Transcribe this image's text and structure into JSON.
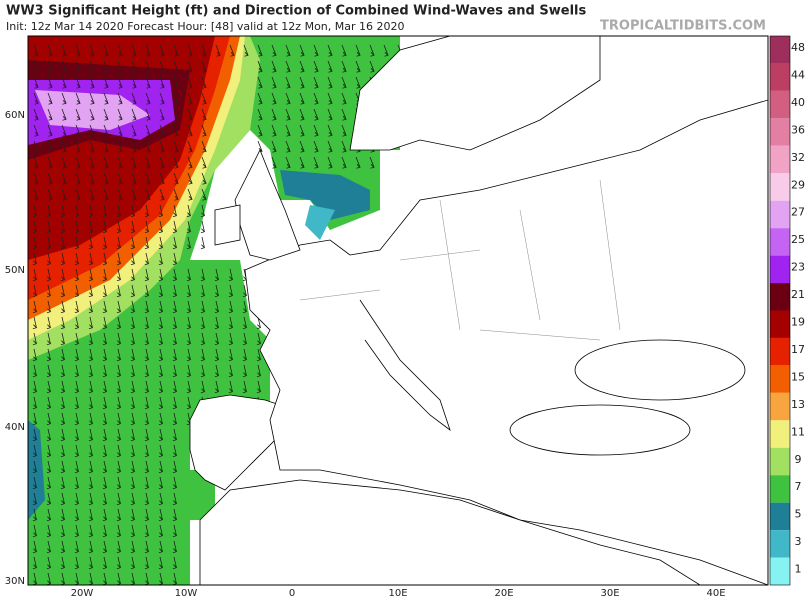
{
  "header": {
    "title": "WW3 Significant Height (ft) and Direction of Combined Wind-Waves and Swells",
    "subtitle": "Init: 12z Mar 14 2020   Forecast Hour: [48]   valid at 12z Mon, Mar 16 2020",
    "watermark": "TROPICALTIDBITS.COM"
  },
  "map": {
    "lat_labels": [
      "60N",
      "50N",
      "40N",
      "30N"
    ],
    "lon_labels": [
      "20W",
      "10W",
      "0",
      "10E",
      "20E",
      "30E",
      "40E"
    ]
  },
  "colorbar": {
    "labels": [
      "48",
      "44",
      "40",
      "36",
      "32",
      "29",
      "27",
      "25",
      "23",
      "21",
      "19",
      "17",
      "15",
      "13",
      "11",
      "9",
      "7",
      "5",
      "3",
      "1"
    ],
    "colors": [
      "#9e2f5c",
      "#bd3e63",
      "#d25f82",
      "#e27fa2",
      "#f0a3c4",
      "#f8cbe8",
      "#e2a4f2",
      "#c564f2",
      "#a123ef",
      "#6b0012",
      "#a30000",
      "#e52100",
      "#f25f00",
      "#f8a540",
      "#f2f07c",
      "#a2e061",
      "#3fc23f",
      "#1f7f97",
      "#41b8c8",
      "#86f2f2"
    ]
  }
}
